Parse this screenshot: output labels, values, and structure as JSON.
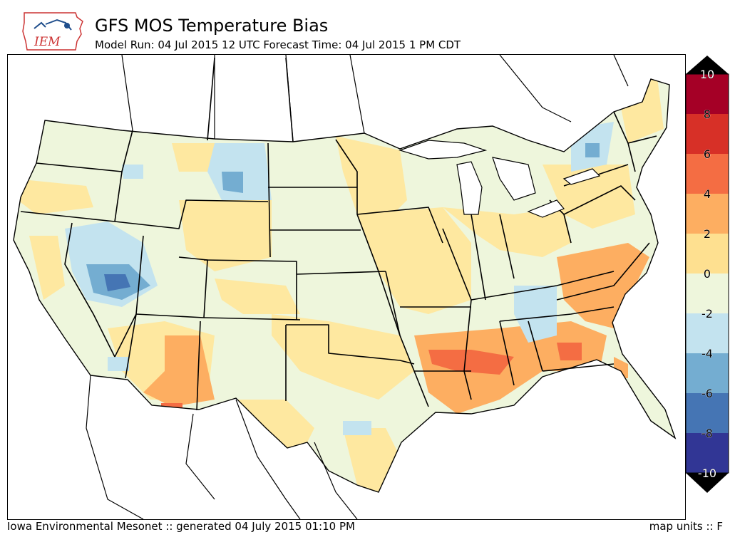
{
  "header": {
    "logo_text": "IEM",
    "title": "GFS MOS Temperature Bias",
    "subtitle": "Model Run: 04 Jul 2015 12 UTC Forecast Time: 04 Jul 2015 1 PM CDT"
  },
  "footer": {
    "left": "Iowa Environmental Mesonet :: generated 04 July 2015 01:10 PM",
    "right": "map units :: F"
  },
  "colorbar": {
    "labels": [
      "10",
      "8",
      "6",
      "4",
      "2",
      "0",
      "-2",
      "-4",
      "-6",
      "-8",
      "-10"
    ],
    "colors": [
      "#a50026",
      "#d73027",
      "#f46d43",
      "#fdae61",
      "#fee090",
      "#eef6dc",
      "#c3e3ef",
      "#74add1",
      "#4575b4",
      "#313695"
    ]
  },
  "colors": {
    "warm_strong": "#f46d43",
    "warm": "#fdae61",
    "warm_light": "#fee8a0",
    "neutral": "#eef6dc",
    "cool_light": "#c3e3ef",
    "cool": "#74add1",
    "cool_strong": "#4575b4",
    "borders": "#000000"
  }
}
